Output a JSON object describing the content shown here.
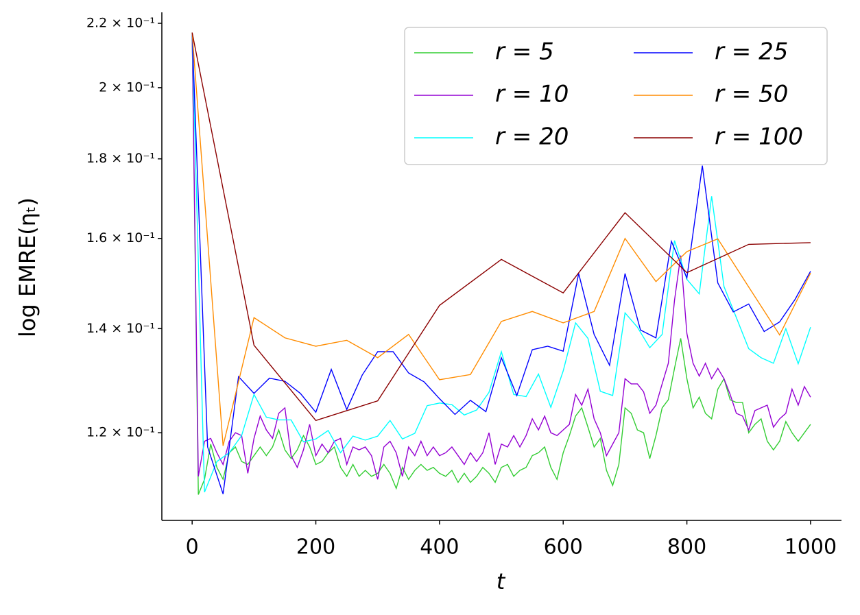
{
  "chart_data": {
    "type": "line",
    "xlabel": "t",
    "ylabel": "log EMRE(ηₜ)",
    "xlim": [
      -49,
      1050
    ],
    "xticks": [
      0,
      200,
      400,
      600,
      800,
      1000
    ],
    "ylim": [
      0.1054,
      0.2236
    ],
    "yscale": "log",
    "yticks": [
      {
        "value": 0.12,
        "label": "1.2 × 10⁻¹"
      },
      {
        "value": 0.14,
        "label": "1.4 × 10⁻¹"
      },
      {
        "value": 0.16,
        "label": "1.6 × 10⁻¹"
      },
      {
        "value": 0.18,
        "label": "1.8 × 10⁻¹"
      },
      {
        "value": 0.2,
        "label": "2 × 10⁻¹"
      },
      {
        "value": 0.22,
        "label": "2.2 × 10⁻¹"
      }
    ],
    "legend": "upper right",
    "legend_columns": 2,
    "series": [
      {
        "name": "r = 5",
        "color": "#32cd32",
        "x": [
          0,
          10,
          20,
          30,
          40,
          50,
          60,
          70,
          80,
          90,
          100,
          110,
          120,
          130,
          140,
          150,
          160,
          170,
          180,
          190,
          200,
          210,
          220,
          230,
          240,
          250,
          260,
          270,
          280,
          290,
          300,
          310,
          320,
          330,
          340,
          350,
          360,
          370,
          380,
          390,
          400,
          410,
          420,
          430,
          440,
          450,
          460,
          470,
          480,
          490,
          500,
          510,
          520,
          530,
          540,
          550,
          560,
          570,
          580,
          590,
          600,
          610,
          620,
          630,
          640,
          650,
          660,
          670,
          680,
          690,
          700,
          710,
          720,
          730,
          740,
          750,
          760,
          770,
          780,
          790,
          800,
          810,
          820,
          830,
          840,
          850,
          860,
          870,
          880,
          890,
          900,
          910,
          920,
          930,
          940,
          950,
          960,
          970,
          980,
          990,
          1000
        ],
        "values": [
          0.217,
          0.1095,
          0.112,
          0.118,
          0.114,
          0.112,
          0.1165,
          0.1175,
          0.115,
          0.1145,
          0.116,
          0.1175,
          0.116,
          0.1175,
          0.1205,
          0.117,
          0.1155,
          0.117,
          0.1195,
          0.1175,
          0.1145,
          0.115,
          0.1165,
          0.1175,
          0.114,
          0.1125,
          0.1145,
          0.1125,
          0.1135,
          0.1125,
          0.113,
          0.1145,
          0.113,
          0.1105,
          0.114,
          0.112,
          0.1135,
          0.1145,
          0.1135,
          0.114,
          0.113,
          0.1125,
          0.1135,
          0.1115,
          0.113,
          0.1115,
          0.1125,
          0.114,
          0.113,
          0.1115,
          0.114,
          0.1145,
          0.1125,
          0.1135,
          0.114,
          0.116,
          0.1165,
          0.1175,
          0.114,
          0.112,
          0.1165,
          0.1195,
          0.123,
          0.1245,
          0.121,
          0.1175,
          0.119,
          0.1135,
          0.111,
          0.1145,
          0.1245,
          0.1235,
          0.1205,
          0.12,
          0.1155,
          0.1195,
          0.1245,
          0.126,
          0.132,
          0.138,
          0.13,
          0.1245,
          0.1265,
          0.1235,
          0.1225,
          0.128,
          0.13,
          0.126,
          0.1255,
          0.1255,
          0.12,
          0.1215,
          0.1225,
          0.1185,
          0.117,
          0.1185,
          0.122,
          0.12,
          0.1185,
          0.12,
          0.1215
        ]
      },
      {
        "name": "r = 10",
        "color": "#9400d3",
        "x": [
          0,
          10,
          20,
          30,
          40,
          50,
          60,
          70,
          80,
          90,
          100,
          110,
          120,
          130,
          140,
          150,
          160,
          170,
          180,
          190,
          200,
          210,
          220,
          230,
          240,
          250,
          260,
          270,
          280,
          290,
          300,
          310,
          320,
          330,
          340,
          350,
          360,
          370,
          380,
          390,
          400,
          410,
          420,
          430,
          440,
          450,
          460,
          470,
          480,
          490,
          500,
          510,
          520,
          530,
          540,
          550,
          560,
          570,
          580,
          590,
          600,
          610,
          620,
          630,
          640,
          650,
          660,
          670,
          680,
          690,
          700,
          710,
          720,
          730,
          740,
          750,
          760,
          770,
          780,
          790,
          800,
          810,
          820,
          830,
          840,
          850,
          860,
          870,
          880,
          890,
          900,
          910,
          920,
          930,
          940,
          950,
          960,
          970,
          980,
          990,
          1000
        ],
        "values": [
          0.217,
          0.1125,
          0.1185,
          0.119,
          0.1165,
          0.1145,
          0.1185,
          0.12,
          0.1195,
          0.113,
          0.119,
          0.123,
          0.1205,
          0.119,
          0.1235,
          0.1245,
          0.116,
          0.114,
          0.117,
          0.1215,
          0.116,
          0.118,
          0.1165,
          0.1185,
          0.119,
          0.1145,
          0.1175,
          0.117,
          0.1175,
          0.116,
          0.112,
          0.1175,
          0.1185,
          0.1165,
          0.1125,
          0.1175,
          0.116,
          0.1185,
          0.116,
          0.1175,
          0.116,
          0.1165,
          0.1175,
          0.116,
          0.1145,
          0.1165,
          0.115,
          0.1165,
          0.12,
          0.1145,
          0.118,
          0.1175,
          0.1195,
          0.1175,
          0.1195,
          0.1225,
          0.1205,
          0.123,
          0.12,
          0.1195,
          0.1205,
          0.1215,
          0.127,
          0.125,
          0.128,
          0.1225,
          0.12,
          0.116,
          0.118,
          0.12,
          0.13,
          0.129,
          0.129,
          0.1275,
          0.1235,
          0.125,
          0.129,
          0.133,
          0.146,
          0.156,
          0.139,
          0.133,
          0.1305,
          0.133,
          0.13,
          0.132,
          0.13,
          0.127,
          0.1235,
          0.123,
          0.1205,
          0.124,
          0.1245,
          0.125,
          0.121,
          0.1225,
          0.1235,
          0.128,
          0.125,
          0.1285,
          0.1265
        ]
      },
      {
        "name": "r = 20",
        "color": "#00ffff",
        "x": [
          0,
          20,
          40,
          60,
          80,
          100,
          120,
          140,
          160,
          180,
          200,
          220,
          240,
          260,
          280,
          300,
          320,
          340,
          360,
          380,
          400,
          420,
          440,
          460,
          480,
          500,
          520,
          540,
          560,
          580,
          600,
          620,
          640,
          660,
          680,
          700,
          720,
          740,
          760,
          780,
          800,
          820,
          840,
          860,
          880,
          900,
          920,
          940,
          960,
          980,
          1000
        ],
        "values": [
          0.217,
          0.1099,
          0.115,
          0.1165,
          0.1195,
          0.127,
          0.1228,
          0.1223,
          0.1223,
          0.1184,
          0.1189,
          0.1204,
          0.1165,
          0.1194,
          0.1187,
          0.1194,
          0.1222,
          0.1189,
          0.1199,
          0.1249,
          0.1254,
          0.1251,
          0.1232,
          0.1241,
          0.1274,
          0.1353,
          0.127,
          0.1266,
          0.1309,
          0.1246,
          0.1315,
          0.1412,
          0.138,
          0.1276,
          0.1268,
          0.1433,
          0.1403,
          0.1361,
          0.1388,
          0.1595,
          0.1506,
          0.1474,
          0.1703,
          0.149,
          0.1423,
          0.1359,
          0.1341,
          0.133,
          0.14,
          0.1329,
          0.1403
        ]
      },
      {
        "name": "r = 25",
        "color": "#0000ff",
        "x": [
          0,
          25,
          50,
          75,
          100,
          125,
          150,
          175,
          200,
          225,
          250,
          275,
          300,
          325,
          350,
          375,
          400,
          425,
          450,
          475,
          500,
          525,
          550,
          575,
          600,
          625,
          650,
          675,
          700,
          725,
          750,
          775,
          800,
          825,
          850,
          875,
          900,
          925,
          950,
          975,
          1000
        ],
        "values": [
          0.217,
          0.1175,
          0.1096,
          0.1304,
          0.1272,
          0.1301,
          0.1295,
          0.1272,
          0.1237,
          0.1318,
          0.1242,
          0.1307,
          0.1353,
          0.1353,
          0.1311,
          0.1294,
          0.1262,
          0.1233,
          0.1259,
          0.1238,
          0.1341,
          0.1268,
          0.1357,
          0.1364,
          0.1354,
          0.1519,
          0.1388,
          0.1326,
          0.1519,
          0.1397,
          0.1381,
          0.1593,
          0.1509,
          0.1782,
          0.1498,
          0.1435,
          0.1452,
          0.1394,
          0.1414,
          0.1462,
          0.1524
        ]
      },
      {
        "name": "r = 50",
        "color": "#ff8c00",
        "x": [
          0,
          50,
          100,
          150,
          200,
          250,
          300,
          350,
          400,
          450,
          500,
          550,
          600,
          650,
          700,
          750,
          800,
          850,
          900,
          950,
          1000
        ],
        "values": [
          0.217,
          0.1177,
          0.1423,
          0.1381,
          0.1364,
          0.1376,
          0.1341,
          0.1388,
          0.1298,
          0.1308,
          0.1415,
          0.1436,
          0.1412,
          0.1436,
          0.16,
          0.1501,
          0.1569,
          0.1599,
          0.1489,
          0.1387,
          0.152
        ]
      },
      {
        "name": "r = 100",
        "color": "#8b0000",
        "x": [
          0,
          100,
          200,
          300,
          400,
          500,
          600,
          700,
          800,
          900,
          1000
        ],
        "values": [
          0.217,
          0.1366,
          0.1222,
          0.1258,
          0.1449,
          0.1551,
          0.1476,
          0.1662,
          0.1521,
          0.1586,
          0.159
        ]
      }
    ]
  }
}
